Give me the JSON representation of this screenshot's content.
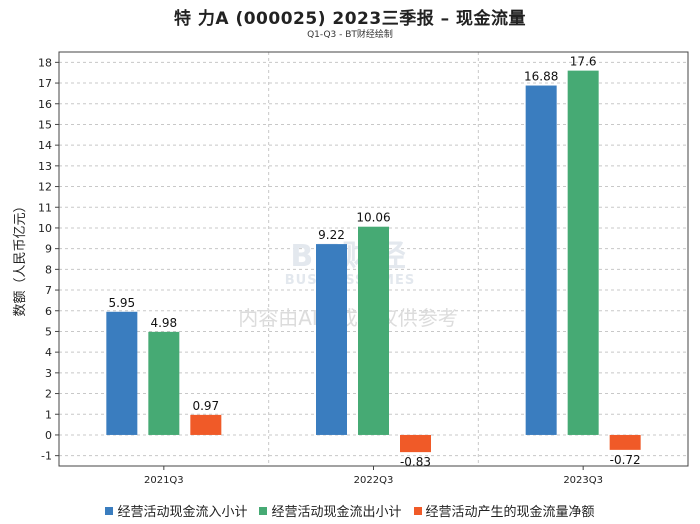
{
  "chart_data": {
    "type": "bar",
    "title": "特 力A (000025) 2023三季报 – 现金流量",
    "subtitle": "Q1-Q3 - BT财经绘制",
    "ylabel": "数额（人民币亿元）",
    "xlabel": "",
    "ylim": [
      -1.5,
      18.5
    ],
    "yticks": [
      -1,
      0,
      1,
      2,
      3,
      4,
      5,
      6,
      7,
      8,
      9,
      10,
      11,
      12,
      13,
      14,
      15,
      16,
      17,
      18
    ],
    "categories": [
      "2021Q3",
      "2022Q3",
      "2023Q3"
    ],
    "grid": true,
    "legend_position": "bottom",
    "series": [
      {
        "name": "经营活动现金流入小计",
        "color": "#3a7dbf",
        "values": [
          5.95,
          9.22,
          16.88
        ],
        "labels": [
          "5.95",
          "9.22",
          "16.88"
        ]
      },
      {
        "name": "经营活动现金流出小计",
        "color": "#46aa74",
        "values": [
          4.98,
          10.06,
          17.6
        ],
        "labels": [
          "4.98",
          "10.06",
          "17.6"
        ]
      },
      {
        "name": "经营活动产生的现金流量净额",
        "color": "#f05a28",
        "values": [
          0.97,
          -0.83,
          -0.72
        ],
        "labels": [
          "0.97",
          "-0.83",
          "-0.72"
        ]
      }
    ]
  },
  "watermark": {
    "brand": "BT财经",
    "brand_sub": "BUSINESSTIMES",
    "notice": "内容由AI生成，仅供参考"
  }
}
